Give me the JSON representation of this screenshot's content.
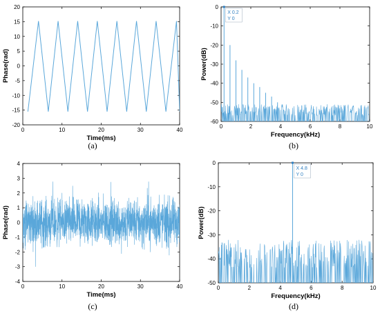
{
  "chart_data": [
    {
      "type": "line",
      "panel": "(a)",
      "xlabel": "Time(ms)",
      "ylabel": "Phase(rad)",
      "xlim": [
        0,
        40
      ],
      "ylim": [
        -20,
        20
      ],
      "xticks": [
        0,
        10,
        20,
        30,
        40
      ],
      "yticks": [
        -20,
        -15,
        -10,
        -5,
        0,
        5,
        10,
        15,
        20
      ],
      "color": "#5aa7da",
      "series": [
        {
          "x": [
            1.3,
            4.0,
            6.5,
            9.0,
            11.5,
            14.0,
            16.5,
            19.0,
            21.5,
            24.0,
            26.5,
            29.0,
            31.5,
            34.0,
            36.5,
            39.2,
            40.0
          ],
          "y": [
            -15.5,
            15.2,
            -15.5,
            15.2,
            -15.5,
            15.2,
            -15.5,
            15.2,
            -15.5,
            15.2,
            -15.5,
            15.2,
            -15.5,
            15.2,
            -15.5,
            15.2,
            -15.5
          ]
        }
      ]
    },
    {
      "type": "line",
      "panel": "(b)",
      "xlabel": "Frequency(kHz)",
      "ylabel": "Power(dB)",
      "xlim": [
        0,
        10
      ],
      "ylim": [
        -60,
        0
      ],
      "xticks": [
        0,
        2,
        4,
        6,
        8,
        10
      ],
      "yticks": [
        -60,
        -50,
        -40,
        -30,
        -20,
        -10,
        0
      ],
      "color": "#5aa7da",
      "datatip": {
        "x_label": "X 0.2",
        "y_label": "Y 0",
        "x": 0.2,
        "y": 0
      },
      "peaks": [
        {
          "x": 0.2,
          "y": 0
        },
        {
          "x": 0.6,
          "y": -20
        },
        {
          "x": 1.0,
          "y": -28
        },
        {
          "x": 1.4,
          "y": -33
        },
        {
          "x": 1.8,
          "y": -37
        },
        {
          "x": 2.2,
          "y": -40
        },
        {
          "x": 2.6,
          "y": -42
        },
        {
          "x": 3.0,
          "y": -45
        },
        {
          "x": 3.4,
          "y": -47
        },
        {
          "x": 3.8,
          "y": -50
        }
      ],
      "noise_floor": [
        -60,
        -51
      ]
    },
    {
      "type": "line",
      "panel": "(c)",
      "xlabel": "Time(ms)",
      "ylabel": "Phase(rad)",
      "xlim": [
        0,
        40
      ],
      "ylim": [
        -4,
        4
      ],
      "xticks": [
        0,
        10,
        20,
        30,
        40
      ],
      "yticks": [
        -4,
        -3,
        -2,
        -1,
        0,
        1,
        2,
        3,
        4
      ],
      "color": "#5aa7da",
      "signal_range": [
        -3.3,
        3.3
      ]
    },
    {
      "type": "line",
      "panel": "(d)",
      "xlabel": "Frequency(kHz)",
      "ylabel": "Power(dB)",
      "xlim": [
        0,
        10
      ],
      "ylim": [
        -50,
        0
      ],
      "xticks": [
        0,
        2,
        4,
        6,
        8,
        10
      ],
      "yticks": [
        -50,
        -40,
        -30,
        -20,
        -10,
        0
      ],
      "color": "#5aa7da",
      "datatip": {
        "x_label": "X 4.8",
        "y_label": "Y 0",
        "x": 4.8,
        "y": 0
      },
      "peaks": [
        {
          "x": 4.8,
          "y": 0
        }
      ],
      "noise_floor": [
        -50,
        -32
      ]
    }
  ]
}
